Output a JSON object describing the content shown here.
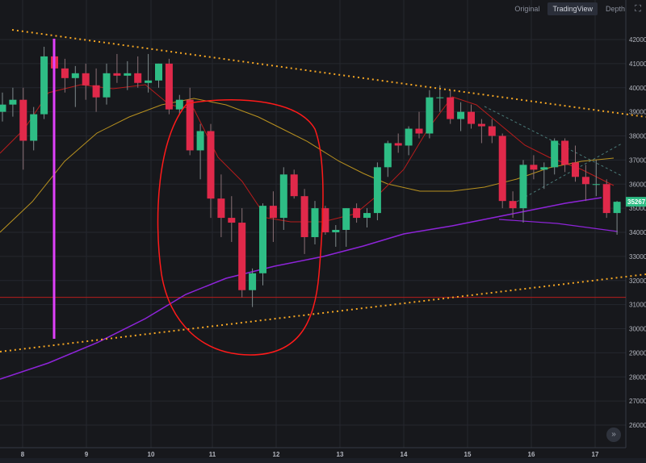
{
  "toolbar": {
    "tabs": [
      {
        "label": "Original",
        "active": false
      },
      {
        "label": "TradingView",
        "active": true
      },
      {
        "label": "Depth",
        "active": false
      }
    ],
    "expand_icon": "fullscreen-icon"
  },
  "scroll_button": {
    "label": "»",
    "icon": "double-chevron-right-icon"
  },
  "colors": {
    "up": "#26a69a",
    "up_body": "#2ebd85",
    "down": "#f23645",
    "down_body": "#e0294a",
    "price_tag": "#2ebd85",
    "trendline": "#f5a623",
    "ma_purple": "#8e24d9",
    "ma_gold": "#b8911f",
    "ma_red": "#b71c1c",
    "vertical": "#e040fb",
    "circle": "#ff1a1a"
  },
  "chart_data": {
    "type": "candlestick",
    "y_ticks": [
      "42000.0",
      "41000.0",
      "40000.0",
      "39000.0",
      "38000.0",
      "37000.0",
      "36000.0",
      "35000.0",
      "34000.0",
      "33000.0",
      "32000.0",
      "31000.0",
      "30000.0",
      "29000.0",
      "28000.0",
      "27000.0",
      "26000.0"
    ],
    "ylim": [
      25400,
      43300
    ],
    "x_ticks": [
      "8",
      "9",
      "10",
      "11",
      "12",
      "13",
      "14",
      "15",
      "16",
      "17"
    ],
    "last_price": "35267.1",
    "horizontal_line": 31300,
    "grid": true,
    "candles": [
      [
        39000,
        39800,
        38600,
        39300
      ],
      [
        39300,
        40000,
        38800,
        39500
      ],
      [
        39500,
        40000,
        36600,
        37800
      ],
      [
        37800,
        39200,
        37400,
        38900
      ],
      [
        38900,
        41700,
        38700,
        41300
      ],
      [
        41300,
        42000,
        39600,
        40800
      ],
      [
        40800,
        41200,
        39800,
        40400
      ],
      [
        40400,
        40900,
        39200,
        40600
      ],
      [
        40600,
        41000,
        39500,
        40100
      ],
      [
        40100,
        40800,
        39000,
        39600
      ],
      [
        39600,
        41000,
        39300,
        40600
      ],
      [
        40600,
        41400,
        40200,
        40500
      ],
      [
        40500,
        41100,
        39900,
        40600
      ],
      [
        40600,
        41300,
        40000,
        40200
      ],
      [
        40200,
        41400,
        39800,
        40300
      ],
      [
        40300,
        41000,
        40000,
        41000
      ],
      [
        41000,
        41200,
        38900,
        39100
      ],
      [
        39100,
        39700,
        38900,
        39500
      ],
      [
        39500,
        40000,
        37200,
        37400
      ],
      [
        37400,
        38500,
        36200,
        38200
      ],
      [
        38200,
        38500,
        34600,
        35400
      ],
      [
        35400,
        36400,
        33800,
        34600
      ],
      [
        34600,
        35500,
        33600,
        34400
      ],
      [
        34400,
        35000,
        31300,
        31600
      ],
      [
        31600,
        32500,
        30900,
        32300
      ],
      [
        32300,
        35200,
        31800,
        35100
      ],
      [
        35100,
        35700,
        33600,
        34600
      ],
      [
        34600,
        36700,
        34100,
        36400
      ],
      [
        36400,
        36600,
        35400,
        35500
      ],
      [
        35500,
        35800,
        33100,
        33800
      ],
      [
        33800,
        35300,
        33500,
        35000
      ],
      [
        35000,
        35100,
        33900,
        34000
      ],
      [
        34000,
        34300,
        33400,
        34100
      ],
      [
        34100,
        35000,
        33400,
        35000
      ],
      [
        35000,
        35200,
        34400,
        34600
      ],
      [
        34600,
        35000,
        34200,
        34800
      ],
      [
        34800,
        36900,
        34500,
        36700
      ],
      [
        36700,
        37800,
        36300,
        37700
      ],
      [
        37700,
        38100,
        37300,
        37600
      ],
      [
        37600,
        38400,
        37200,
        38300
      ],
      [
        38300,
        39000,
        37900,
        38100
      ],
      [
        38100,
        39900,
        37900,
        39600
      ],
      [
        39600,
        40100,
        39000,
        39600
      ],
      [
        39600,
        39900,
        38500,
        38700
      ],
      [
        38700,
        39400,
        38200,
        39000
      ],
      [
        39000,
        39300,
        38300,
        38500
      ],
      [
        38500,
        38700,
        37700,
        38400
      ],
      [
        38400,
        38700,
        37700,
        38000
      ],
      [
        38000,
        38100,
        35000,
        35300
      ],
      [
        35300,
        35700,
        34600,
        35000
      ],
      [
        35000,
        37000,
        34400,
        36800
      ],
      [
        36800,
        37200,
        36200,
        36600
      ],
      [
        36600,
        36900,
        35800,
        36700
      ],
      [
        36700,
        37900,
        36400,
        37800
      ],
      [
        37800,
        37900,
        36500,
        36800
      ],
      [
        36900,
        37600,
        36100,
        36300
      ],
      [
        36300,
        36800,
        35300,
        36000
      ],
      [
        36000,
        37000,
        35500,
        36000
      ],
      [
        36000,
        36200,
        34600,
        34800
      ],
      [
        34800,
        35300,
        33900,
        35267.1
      ]
    ]
  }
}
